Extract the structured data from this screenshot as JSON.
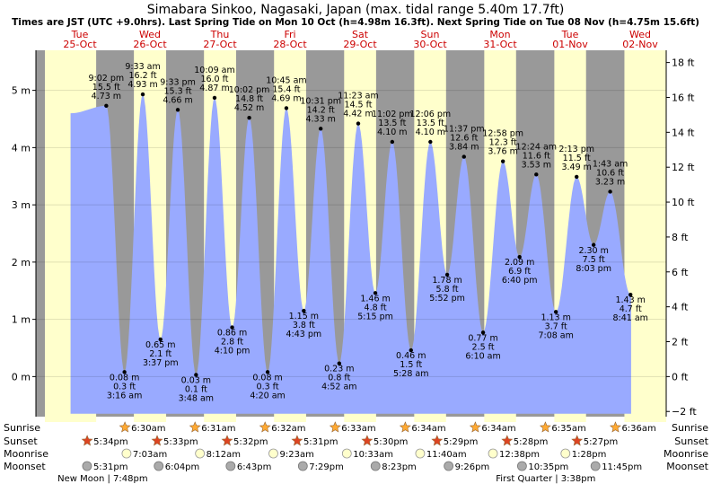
{
  "chart_data": {
    "type": "area",
    "title": "Simabara Sinkoo, Nagasaki, Japan (max. tidal range 5.40m 17.7ft)",
    "subtitle": "Times are JST (UTC +9.0hrs). Last Spring Tide on Mon 10 Oct (h=4.98m 16.3ft). Next Spring Tide on Tue 08 Nov (h=4.75m 15.6ft)",
    "days": [
      {
        "dow": "Tue",
        "date": "25-Oct"
      },
      {
        "dow": "Wed",
        "date": "26-Oct"
      },
      {
        "dow": "Thu",
        "date": "27-Oct"
      },
      {
        "dow": "Fri",
        "date": "28-Oct"
      },
      {
        "dow": "Sat",
        "date": "29-Oct"
      },
      {
        "dow": "Sun",
        "date": "30-Oct"
      },
      {
        "dow": "Mon",
        "date": "31-Oct"
      },
      {
        "dow": "Tue",
        "date": "01-Nov"
      },
      {
        "dow": "Wed",
        "date": "02-Nov"
      }
    ],
    "y_left": {
      "unit": "m",
      "range": [
        -0.7,
        5.7
      ],
      "ticks": [
        "0 m",
        "1 m",
        "2 m",
        "3 m",
        "4 m",
        "5 m"
      ],
      "tick_values": [
        0,
        1,
        2,
        3,
        4,
        5
      ]
    },
    "y_right": {
      "unit": "ft",
      "ticks": [
        "−2 ft",
        "0 ft",
        "2 ft",
        "4 ft",
        "6 ft",
        "8 ft",
        "10 ft",
        "12 ft",
        "14 ft",
        "16 ft",
        "18 ft"
      ],
      "tick_values": [
        -2,
        0,
        2,
        4,
        6,
        8,
        10,
        12,
        14,
        16,
        18
      ]
    },
    "start_hour": 8.8,
    "start_level_m": 4.6,
    "end_hour": 200.9,
    "tides": [
      {
        "hour": 21.03,
        "m": 4.73,
        "time": "9:02 pm",
        "m_label": "4.73 m",
        "ft_label": "15.5 ft"
      },
      {
        "hour": 27.27,
        "m": 0.08,
        "time": "3:16 am",
        "m_label": "0.08 m",
        "ft_label": "0.3 ft"
      },
      {
        "hour": 33.55,
        "m": 4.93,
        "time": "9:33 am",
        "m_label": "4.93 m",
        "ft_label": "16.2 ft"
      },
      {
        "hour": 39.62,
        "m": 0.65,
        "time": "3:37 pm",
        "m_label": "0.65 m",
        "ft_label": "2.1 ft"
      },
      {
        "hour": 45.55,
        "m": 4.66,
        "time": "9:33 pm",
        "m_label": "4.66 m",
        "ft_label": "15.3 ft"
      },
      {
        "hour": 51.8,
        "m": 0.03,
        "time": "3:48 am",
        "m_label": "0.03 m",
        "ft_label": "0.1 ft"
      },
      {
        "hour": 58.15,
        "m": 4.87,
        "time": "10:09 am",
        "m_label": "4.87 m",
        "ft_label": "16.0 ft"
      },
      {
        "hour": 64.17,
        "m": 0.86,
        "time": "4:10 pm",
        "m_label": "0.86 m",
        "ft_label": "2.8 ft"
      },
      {
        "hour": 70.03,
        "m": 4.52,
        "time": "10:02 pm",
        "m_label": "4.52 m",
        "ft_label": "14.8 ft"
      },
      {
        "hour": 76.33,
        "m": 0.08,
        "time": "4:20 am",
        "m_label": "0.08 m",
        "ft_label": "0.3 ft"
      },
      {
        "hour": 82.75,
        "m": 4.69,
        "time": "10:45 am",
        "m_label": "4.69 m",
        "ft_label": "15.4 ft"
      },
      {
        "hour": 88.72,
        "m": 1.15,
        "time": "4:43 pm",
        "m_label": "1.15 m",
        "ft_label": "3.8 ft"
      },
      {
        "hour": 94.52,
        "m": 4.33,
        "time": "10:31 pm",
        "m_label": "4.33 m",
        "ft_label": "14.2 ft"
      },
      {
        "hour": 100.87,
        "m": 0.23,
        "time": "4:52 am",
        "m_label": "0.23 m",
        "ft_label": "0.8 ft"
      },
      {
        "hour": 107.38,
        "m": 4.42,
        "time": "11:23 am",
        "m_label": "4.42 m",
        "ft_label": "14.5 ft"
      },
      {
        "hour": 113.25,
        "m": 1.46,
        "time": "5:15 pm",
        "m_label": "1.46 m",
        "ft_label": "4.8 ft"
      },
      {
        "hour": 119.03,
        "m": 4.1,
        "time": "11:02 pm",
        "m_label": "4.10 m",
        "ft_label": "13.5 ft"
      },
      {
        "hour": 125.47,
        "m": 0.46,
        "time": "5:28 am",
        "m_label": "0.46 m",
        "ft_label": "1.5 ft"
      },
      {
        "hour": 132.1,
        "m": 4.1,
        "time": "12:06 pm",
        "m_label": "4.10 m",
        "ft_label": "13.5 ft"
      },
      {
        "hour": 137.87,
        "m": 1.78,
        "time": "5:52 pm",
        "m_label": "1.78 m",
        "ft_label": "5.8 ft"
      },
      {
        "hour": 143.62,
        "m": 3.84,
        "time": "11:37 pm",
        "m_label": "3.84 m",
        "ft_label": "12.6 ft"
      },
      {
        "hour": 150.17,
        "m": 0.77,
        "time": "6:10 am",
        "m_label": "0.77 m",
        "ft_label": "2.5 ft"
      },
      {
        "hour": 156.97,
        "m": 3.76,
        "time": "12:58 pm",
        "m_label": "3.76 m",
        "ft_label": "12.3 ft"
      },
      {
        "hour": 162.67,
        "m": 2.09,
        "time": "6:40 pm",
        "m_label": "2.09 m",
        "ft_label": "6.9 ft"
      },
      {
        "hour": 168.4,
        "m": 3.53,
        "time": "12:24 am",
        "m_label": "3.53 m",
        "ft_label": "11.6 ft"
      },
      {
        "hour": 175.13,
        "m": 1.13,
        "time": "7:08 am",
        "m_label": "1.13 m",
        "ft_label": "3.7 ft"
      },
      {
        "hour": 182.22,
        "m": 3.49,
        "time": "2:13 pm",
        "m_label": "3.49 m",
        "ft_label": "11.5 ft"
      },
      {
        "hour": 188.05,
        "m": 2.3,
        "time": "8:03 pm",
        "m_label": "2.30 m",
        "ft_label": "7.5 ft"
      },
      {
        "hour": 193.72,
        "m": 3.23,
        "time": "1:43 am",
        "m_label": "3.23 m",
        "ft_label": "10.6 ft"
      },
      {
        "hour": 200.68,
        "m": 1.43,
        "time": "8:41 am",
        "m_label": "1.43 m",
        "ft_label": "4.7 ft"
      }
    ],
    "sunrise": [
      {
        "hour": 30.5,
        "label": "6:30am"
      },
      {
        "hour": 54.52,
        "label": "6:31am"
      },
      {
        "hour": 78.53,
        "label": "6:32am"
      },
      {
        "hour": 102.55,
        "label": "6:33am"
      },
      {
        "hour": 126.57,
        "label": "6:34am"
      },
      {
        "hour": 150.57,
        "label": "6:34am"
      },
      {
        "hour": 174.58,
        "label": "6:35am"
      },
      {
        "hour": 198.6,
        "label": "6:36am"
      }
    ],
    "sunset": [
      {
        "hour": 17.57,
        "label": "5:34pm"
      },
      {
        "hour": 41.55,
        "label": "5:33pm"
      },
      {
        "hour": 65.53,
        "label": "5:32pm"
      },
      {
        "hour": 89.52,
        "label": "5:31pm"
      },
      {
        "hour": 113.5,
        "label": "5:30pm"
      },
      {
        "hour": 137.48,
        "label": "5:29pm"
      },
      {
        "hour": 161.47,
        "label": "5:28pm"
      },
      {
        "hour": 185.45,
        "label": "5:27pm"
      }
    ],
    "moonrise": [
      {
        "hour": 31.05,
        "label": "7:03am"
      },
      {
        "hour": 56.2,
        "label": "8:12am"
      },
      {
        "hour": 81.38,
        "label": "9:23am"
      },
      {
        "hour": 106.55,
        "label": "10:33am"
      },
      {
        "hour": 131.67,
        "label": "11:40am"
      },
      {
        "hour": 156.63,
        "label": "12:38pm"
      },
      {
        "hour": 181.47,
        "label": "1:28pm"
      }
    ],
    "moonset": [
      {
        "hour": 17.52,
        "label": "5:31pm"
      },
      {
        "hour": 42.07,
        "label": "6:04pm"
      },
      {
        "hour": 66.72,
        "label": "6:43pm"
      },
      {
        "hour": 91.48,
        "label": "7:29pm"
      },
      {
        "hour": 116.38,
        "label": "8:23pm"
      },
      {
        "hour": 141.43,
        "label": "9:26pm"
      },
      {
        "hour": 166.58,
        "label": "10:35pm"
      },
      {
        "hour": 191.75,
        "label": "11:45pm"
      }
    ],
    "row_labels": {
      "sunrise": "Sunrise",
      "sunset": "Sunset",
      "moonrise": "Moonrise",
      "moonset": "Moonset"
    },
    "moon_phases": [
      {
        "hour": 19.8,
        "label": "New Moon | 7:48pm"
      },
      {
        "hour": 171.63,
        "label": "First Quarter | 3:38pm"
      }
    ],
    "colors": {
      "day": "#ffffcc",
      "night": "#999999",
      "water": "#99aaff",
      "sun": "#ffaa33",
      "sunset_star": "#dd4422",
      "moon_light": "#ffffcc",
      "moon_dark": "#aaaaaa"
    }
  }
}
